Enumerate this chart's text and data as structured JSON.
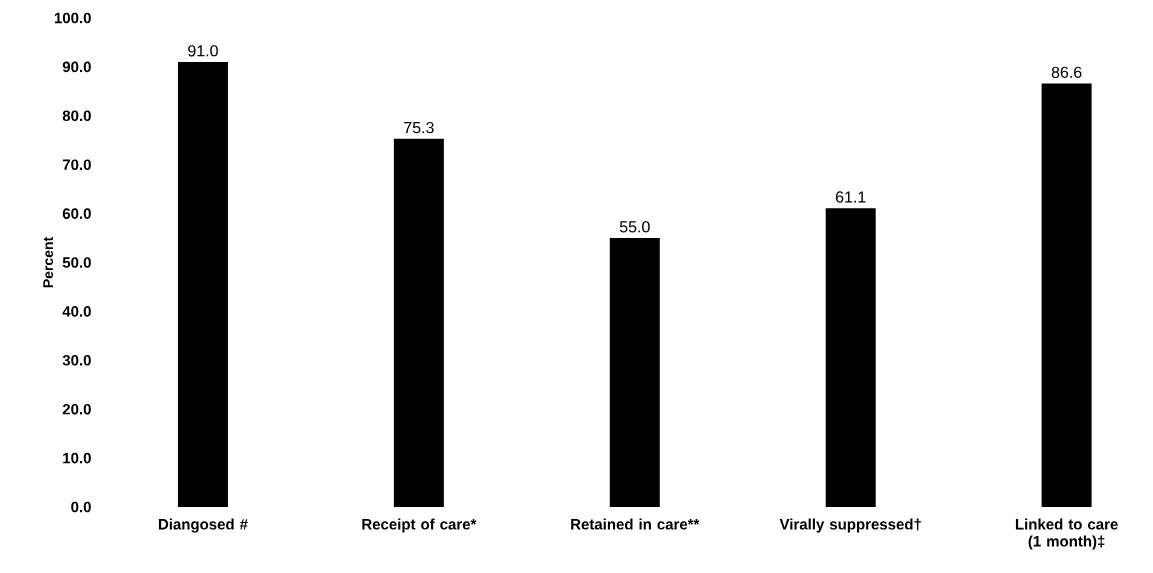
{
  "chart_data": {
    "type": "bar",
    "ylabel": "Percent",
    "categories": [
      "Diangosed #",
      "Receipt of care*",
      "Retained in care**",
      "Virally suppressed†",
      "Linked to care (1 month)‡"
    ],
    "values": [
      91.0,
      75.3,
      55.0,
      61.1,
      86.6
    ],
    "value_labels": [
      "91.0",
      "75.3",
      "55.0",
      "61.1",
      "86.6"
    ],
    "color": "#000000",
    "ylim": [
      0,
      100
    ],
    "yticks": [
      {
        "value": 0,
        "label": "0.0"
      },
      {
        "value": 10,
        "label": "10.0"
      },
      {
        "value": 20,
        "label": "20.0"
      },
      {
        "value": 30,
        "label": "30.0"
      },
      {
        "value": 40,
        "label": "40.0"
      },
      {
        "value": 50,
        "label": "50.0"
      },
      {
        "value": 60,
        "label": "60.0"
      },
      {
        "value": 70,
        "label": "70.0"
      },
      {
        "value": 80,
        "label": "80.0"
      },
      {
        "value": 90,
        "label": "90.0"
      },
      {
        "value": 100,
        "label": "100.0"
      }
    ],
    "grid": false
  }
}
